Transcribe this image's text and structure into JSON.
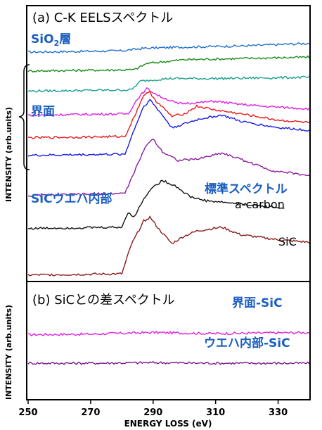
{
  "chart_data": [
    {
      "type": "line",
      "panel_title": "(a) C-K EELSスペクトル",
      "ylabel": "INTENSITY (arb.units)",
      "x_range": [
        250,
        340
      ],
      "y_range": [
        0,
        10
      ],
      "group_labels": {
        "sio2": "SiO",
        "sio2_sub": "2",
        "sio2_suffix": "層",
        "interface": "界面",
        "wafer": "SiCウエハ内部",
        "standard": "標準スペクトル",
        "acarbon": "a-carbon",
        "sic": "SiC"
      },
      "series": [
        {
          "color": "#1f6fcc",
          "points": [
            [
              250,
              9.05
            ],
            [
              280,
              9.1
            ],
            [
              287,
              9.2
            ],
            [
              300,
              9.25
            ],
            [
              320,
              9.3
            ],
            [
              340,
              9.4
            ]
          ]
        },
        {
          "color": "#178a17",
          "points": [
            [
              250,
              8.3
            ],
            [
              284,
              8.35
            ],
            [
              288,
              8.6
            ],
            [
              300,
              8.75
            ],
            [
              320,
              8.8
            ],
            [
              340,
              8.85
            ]
          ]
        },
        {
          "color": "#16a090",
          "points": [
            [
              250,
              7.5
            ],
            [
              283,
              7.55
            ],
            [
              286,
              7.9
            ],
            [
              295,
              8.0
            ],
            [
              310,
              8.0
            ],
            [
              340,
              8.05
            ]
          ]
        },
        {
          "color": "#e020e0",
          "points": [
            [
              250,
              6.55
            ],
            [
              282,
              6.6
            ],
            [
              285,
              7.2
            ],
            [
              288,
              7.6
            ],
            [
              292,
              7.3
            ],
            [
              298,
              7.0
            ],
            [
              305,
              7.05
            ],
            [
              310,
              7.1
            ],
            [
              316,
              7.0
            ],
            [
              325,
              6.9
            ],
            [
              340,
              6.8
            ]
          ]
        },
        {
          "color": "#e81a1a",
          "points": [
            [
              250,
              5.65
            ],
            [
              281,
              5.7
            ],
            [
              284,
              6.5
            ],
            [
              287,
              7.35
            ],
            [
              289,
              7.45
            ],
            [
              291,
              7.1
            ],
            [
              296,
              6.5
            ],
            [
              300,
              6.6
            ],
            [
              304,
              6.9
            ],
            [
              310,
              6.75
            ],
            [
              318,
              6.6
            ],
            [
              330,
              6.35
            ],
            [
              340,
              6.25
            ]
          ]
        },
        {
          "color": "#1a1ae6",
          "points": [
            [
              250,
              4.95
            ],
            [
              281,
              5.0
            ],
            [
              284,
              6.0
            ],
            [
              287,
              6.9
            ],
            [
              289,
              7.15
            ],
            [
              292,
              6.7
            ],
            [
              296,
              6.05
            ],
            [
              300,
              6.2
            ],
            [
              305,
              6.4
            ],
            [
              312,
              6.55
            ],
            [
              318,
              6.3
            ],
            [
              330,
              6.05
            ],
            [
              340,
              5.95
            ]
          ]
        },
        {
          "color": "#8b1a9e",
          "points": [
            [
              250,
              3.35
            ],
            [
              281,
              3.45
            ],
            [
              284,
              4.3
            ],
            [
              288,
              5.4
            ],
            [
              290,
              5.6
            ],
            [
              293,
              5.1
            ],
            [
              298,
              4.75
            ],
            [
              304,
              4.8
            ],
            [
              312,
              5.05
            ],
            [
              318,
              4.8
            ],
            [
              328,
              4.35
            ],
            [
              340,
              4.15
            ]
          ]
        },
        {
          "color": "#111111",
          "points": [
            [
              250,
              2.05
            ],
            [
              280,
              2.1
            ],
            [
              282,
              2.7
            ],
            [
              284,
              2.5
            ],
            [
              286,
              3.0
            ],
            [
              289,
              3.6
            ],
            [
              293,
              3.95
            ],
            [
              297,
              3.75
            ],
            [
              302,
              3.3
            ],
            [
              307,
              3.15
            ],
            [
              320,
              3.0
            ],
            [
              328,
              2.9
            ],
            [
              332,
              2.85
            ]
          ]
        },
        {
          "color": "#8b1a1a",
          "points": [
            [
              250,
              0.2
            ],
            [
              280,
              0.25
            ],
            [
              283,
              1.4
            ],
            [
              287,
              2.35
            ],
            [
              289,
              2.5
            ],
            [
              292,
              2.0
            ],
            [
              296,
              1.45
            ],
            [
              300,
              1.75
            ],
            [
              304,
              1.95
            ],
            [
              312,
              2.1
            ],
            [
              318,
              1.8
            ],
            [
              330,
              1.6
            ],
            [
              340,
              1.5
            ]
          ]
        }
      ]
    },
    {
      "type": "line",
      "panel_title": "(b) SiCとの差スペクトル",
      "ylabel": "INTENSITY (arb.units)",
      "xlabel": "ENERGY LOSS (eV)",
      "x_range": [
        250,
        340
      ],
      "x_ticks": [
        250,
        270,
        290,
        310,
        330
      ],
      "y_range": [
        0,
        10
      ],
      "series": [
        {
          "name": "界面-SiC",
          "color": "#e020e0",
          "points": [
            [
              250,
              5.8
            ],
            [
              270,
              5.85
            ],
            [
              290,
              6.0
            ],
            [
              310,
              5.9
            ],
            [
              340,
              6.0
            ]
          ]
        },
        {
          "name": "ウエハ内部-SiC",
          "color": "#7a1a8a",
          "points": [
            [
              250,
              3.2
            ],
            [
              270,
              3.2
            ],
            [
              290,
              3.25
            ],
            [
              310,
              3.2
            ],
            [
              340,
              3.2
            ]
          ]
        }
      ]
    }
  ]
}
